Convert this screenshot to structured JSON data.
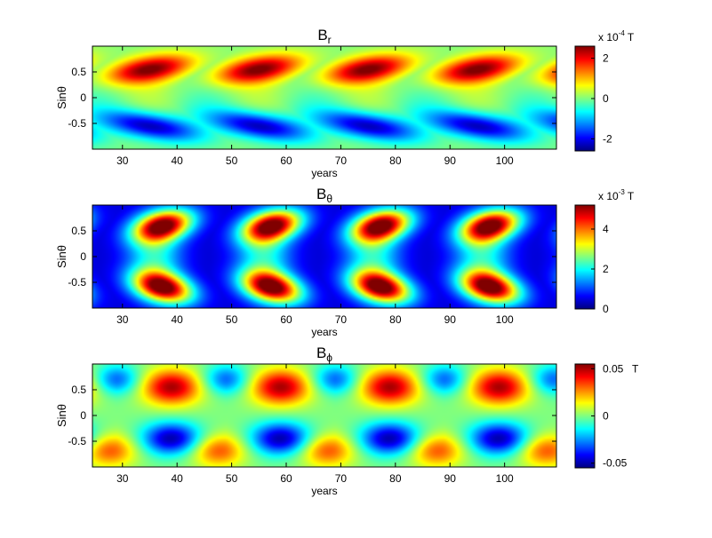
{
  "chart_data": [
    {
      "type": "heatmap",
      "title": "B",
      "title_subscript": "r",
      "xlabel": "years",
      "ylabel": "Sinθ",
      "xlim": [
        24.5,
        109.5
      ],
      "ylim": [
        -1,
        1
      ],
      "xticks": [
        30,
        40,
        50,
        60,
        70,
        80,
        90,
        100
      ],
      "yticks": [
        0.5,
        0,
        -0.5
      ],
      "ytick_labels": [
        "0.5",
        "0",
        "-0.5"
      ],
      "period_years": 20,
      "colorbar": {
        "range": [
          -2.6,
          2.6
        ],
        "ticks": [
          2,
          0,
          -2
        ],
        "tick_labels": [
          "2",
          "0",
          "-2"
        ],
        "scale_label": "x 10",
        "scale_exponent": "-4",
        "unit": "T"
      },
      "features": [
        {
          "kind": "max",
          "x": 35,
          "y": 0.55,
          "value": 2.5
        },
        {
          "kind": "max",
          "x": 55,
          "y": 0.55,
          "value": 2.5
        },
        {
          "kind": "max",
          "x": 75,
          "y": 0.55,
          "value": 2.5
        },
        {
          "kind": "max",
          "x": 95,
          "y": 0.55,
          "value": 2.5
        },
        {
          "kind": "min",
          "x": 35,
          "y": -0.55,
          "value": -2.5
        },
        {
          "kind": "min",
          "x": 55,
          "y": -0.55,
          "value": -2.5
        },
        {
          "kind": "min",
          "x": 75,
          "y": -0.55,
          "value": -2.5
        },
        {
          "kind": "min",
          "x": 95,
          "y": -0.55,
          "value": -2.5
        }
      ]
    },
    {
      "type": "heatmap",
      "title": "B",
      "title_subscript": "θ",
      "xlabel": "years",
      "ylabel": "Sinθ",
      "xlim": [
        24.5,
        109.5
      ],
      "ylim": [
        -1,
        1
      ],
      "xticks": [
        30,
        40,
        50,
        60,
        70,
        80,
        90,
        100
      ],
      "yticks": [
        0.5,
        0,
        -0.5
      ],
      "ytick_labels": [
        "0.5",
        "0",
        "-0.5"
      ],
      "period_years": 20,
      "colorbar": {
        "range": [
          0,
          5.2
        ],
        "ticks": [
          4,
          2,
          0
        ],
        "tick_labels": [
          "4",
          "2",
          "0"
        ],
        "scale_label": "x 10",
        "scale_exponent": "-3",
        "unit": "T"
      },
      "features": [
        {
          "kind": "max",
          "x": 37,
          "y": 0.6,
          "value": 5
        },
        {
          "kind": "max",
          "x": 37,
          "y": -0.6,
          "value": 5
        },
        {
          "kind": "max",
          "x": 58,
          "y": 0.6,
          "value": 5
        },
        {
          "kind": "max",
          "x": 58,
          "y": -0.6,
          "value": 5
        },
        {
          "kind": "max",
          "x": 78,
          "y": 0.6,
          "value": 5
        },
        {
          "kind": "max",
          "x": 78,
          "y": -0.6,
          "value": 5
        },
        {
          "kind": "max",
          "x": 98,
          "y": 0.6,
          "value": 5
        },
        {
          "kind": "max",
          "x": 98,
          "y": -0.6,
          "value": 5
        }
      ]
    },
    {
      "type": "heatmap",
      "title": "B",
      "title_subscript": "ϕ",
      "xlabel": "years",
      "ylabel": "Sinθ",
      "xlim": [
        24.5,
        109.5
      ],
      "ylim": [
        -1,
        1
      ],
      "xticks": [
        30,
        40,
        50,
        60,
        70,
        80,
        90,
        100
      ],
      "yticks": [
        0.5,
        0,
        -0.5
      ],
      "ytick_labels": [
        "0.5",
        "0",
        "-0.5"
      ],
      "period_years": 20,
      "colorbar": {
        "range": [
          -0.055,
          0.055
        ],
        "ticks": [
          0.05,
          0,
          -0.05
        ],
        "tick_labels": [
          "0.05",
          "0",
          "-0.05"
        ],
        "scale_label": "",
        "scale_exponent": "",
        "unit": "T"
      },
      "features": [
        {
          "kind": "max",
          "x": 39,
          "y": 0.55,
          "value": 0.05
        },
        {
          "kind": "max",
          "x": 59,
          "y": 0.55,
          "value": 0.05
        },
        {
          "kind": "max",
          "x": 79,
          "y": 0.55,
          "value": 0.05
        },
        {
          "kind": "max",
          "x": 99,
          "y": 0.55,
          "value": 0.05
        },
        {
          "kind": "min",
          "x": 39,
          "y": -0.45,
          "value": -0.05
        },
        {
          "kind": "min",
          "x": 59,
          "y": -0.45,
          "value": -0.05
        },
        {
          "kind": "min",
          "x": 79,
          "y": -0.45,
          "value": -0.05
        },
        {
          "kind": "min",
          "x": 99,
          "y": -0.45,
          "value": -0.05
        },
        {
          "kind": "min",
          "x": 29,
          "y": 0.7,
          "value": -0.03
        },
        {
          "kind": "max",
          "x": 28,
          "y": -0.65,
          "value": 0.035
        }
      ]
    }
  ],
  "colormap": "jet"
}
